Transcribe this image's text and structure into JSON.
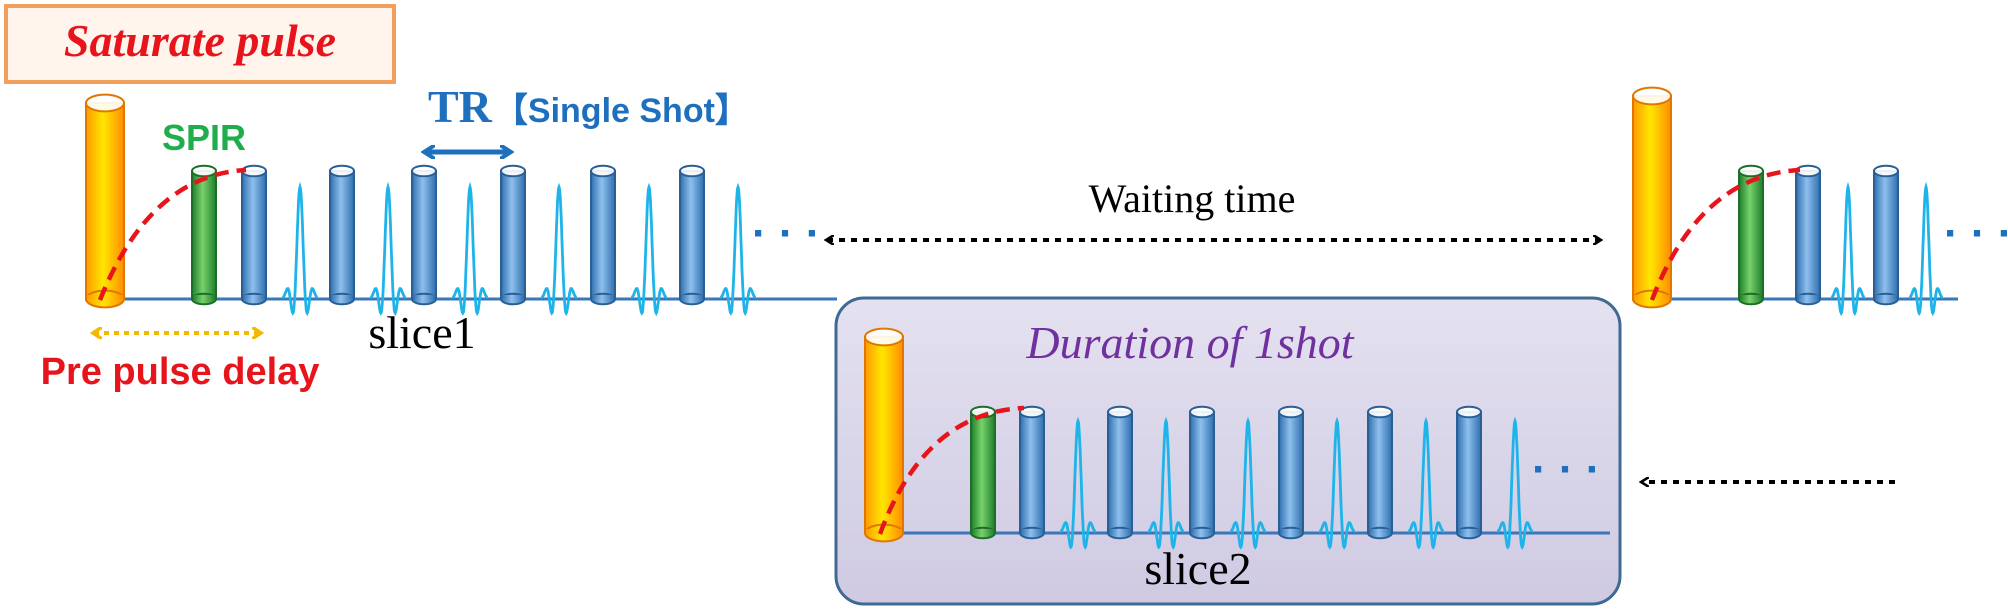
{
  "labels": {
    "saturate_pulse": "Saturate pulse",
    "spir": "SPIR",
    "tr_label": "TR",
    "single_shot": "【Single Shot】",
    "waiting_time": "Waiting time",
    "slice1": "slice1",
    "slice2": "slice2",
    "pre_pulse_delay": "Pre pulse delay",
    "duration_of_1shot": "Duration of 1shot",
    "dots": "· · ·"
  },
  "colors": {
    "saturate_red": "#e8141c",
    "saturate_border": "#f0a05a",
    "saturate_fill": "#fff5ec",
    "spir_green": "#1fae4b",
    "tr_blue": "#1f6fbf",
    "pulse_yellow": "#ffd700",
    "pulse_orange": "#ff9a00",
    "pulse_blue": "#5b9ad5",
    "pulse_blue_dark": "#2f6fae",
    "pulse_green": "#3cb043",
    "echo_cyan": "#1eb4ea",
    "baseline": "#3a76b8",
    "recovery_curve": "#e8141c",
    "delay_arrow": "#f5b800",
    "duration_text": "#7030a0",
    "duration_box_fill": "#dcd8ea",
    "duration_box_border": "#3e6a94",
    "arrow_black": "#000000"
  },
  "icons": {
    "saturation": "yellow-cylinder-icon",
    "spir": "green-cylinder-icon",
    "excitation": "blue-cylinder-icon",
    "echo": "echo-signal-icon"
  }
}
